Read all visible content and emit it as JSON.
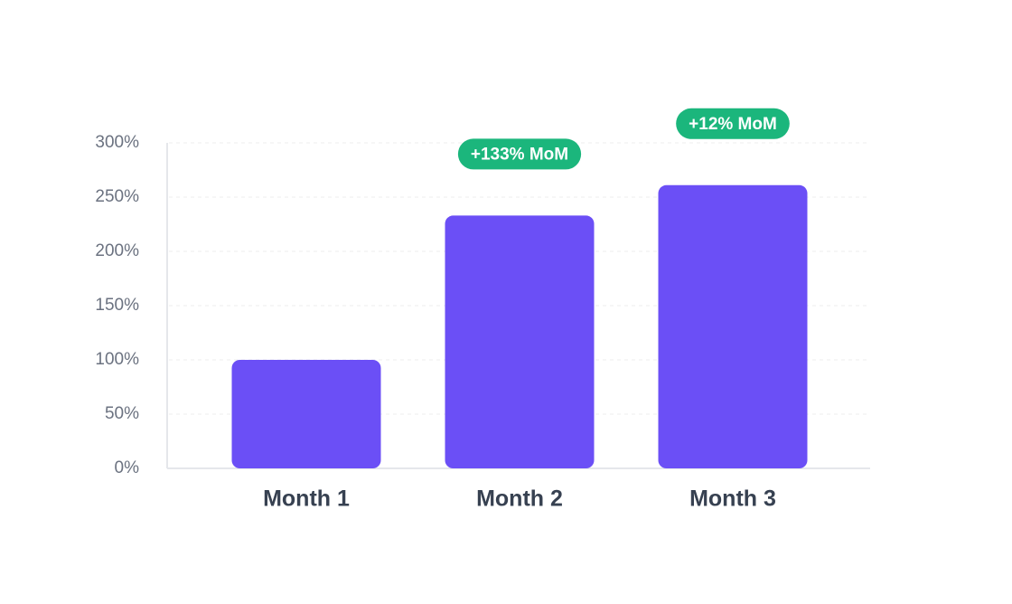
{
  "chart_data": {
    "type": "bar",
    "categories": [
      "Month 1",
      "Month 2",
      "Month 3"
    ],
    "values": [
      100,
      233,
      261
    ],
    "annotations": [
      null,
      "+133% MoM",
      "+12% MoM"
    ],
    "color": "#6b4ff6",
    "annotation_color": "#1bb67c",
    "ylim": [
      0,
      300
    ],
    "yticks": [
      {
        "value": 0,
        "label": "0%"
      },
      {
        "value": 50,
        "label": "50%"
      },
      {
        "value": 100,
        "label": "100%"
      },
      {
        "value": 150,
        "label": "150%"
      },
      {
        "value": 200,
        "label": "200%"
      },
      {
        "value": 250,
        "label": "250%"
      },
      {
        "value": 300,
        "label": "300%"
      }
    ],
    "grid": true
  }
}
